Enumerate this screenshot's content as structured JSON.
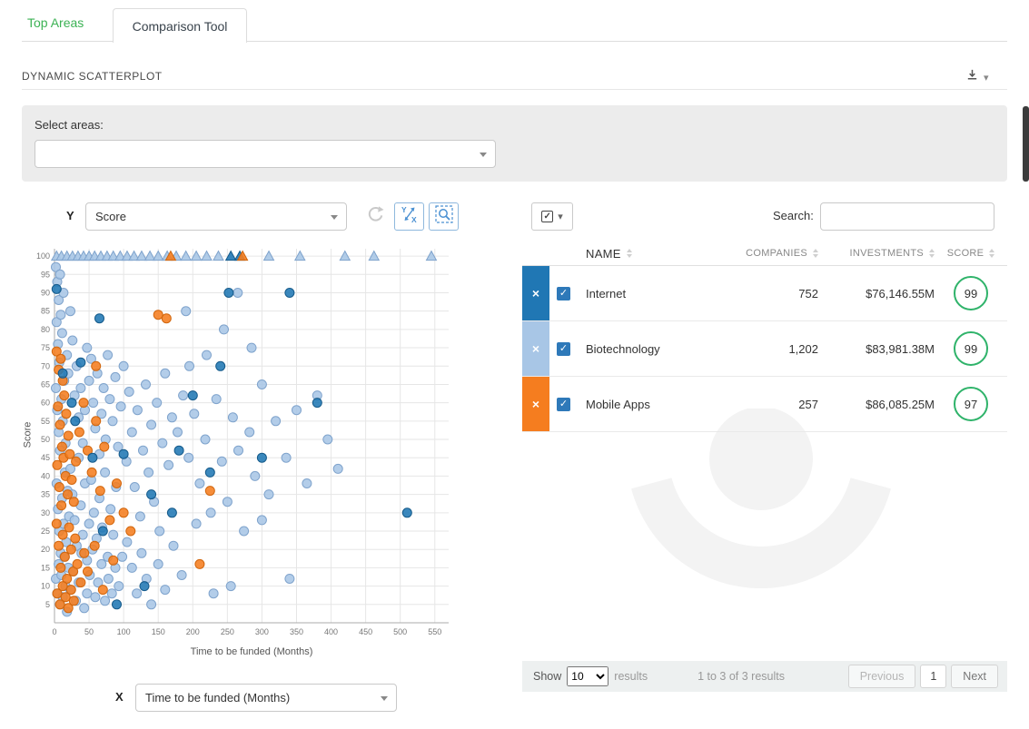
{
  "tabs": {
    "top_areas": "Top Areas",
    "comparison_tool": "Comparison Tool"
  },
  "section": {
    "title": "DYNAMIC SCATTERPLOT"
  },
  "area_filter": {
    "label": "Select areas:",
    "value": ""
  },
  "axis_controls": {
    "y_label": "Y",
    "y_value": "Score",
    "x_label": "X",
    "x_value": "Time to be funded (Months)"
  },
  "search": {
    "label": "Search:",
    "value": ""
  },
  "icons": {
    "check": "✓",
    "close_x": "×",
    "caret_down": "▾"
  },
  "colors": {
    "tab_green": "#3cb254",
    "accent_blue": "#4a90d2",
    "score_ring_green": "#2fb36a",
    "checkbox_blue": "#2e79b9",
    "series_internet": "#2077b4",
    "series_biotechnology": "#a8c6e6",
    "series_mobile_apps": "#f57d1f"
  },
  "table": {
    "headers": [
      "NAME",
      "COMPANIES",
      "INVESTMENTS",
      "SCORE"
    ],
    "rows": [
      {
        "name": "Internet",
        "companies": "752",
        "investments": "$76,146.55M",
        "score": "99",
        "badge_color": "#2077b4"
      },
      {
        "name": "Biotechnology",
        "companies": "1,202",
        "investments": "$83,981.38M",
        "score": "99",
        "badge_color": "#a8c6e6"
      },
      {
        "name": "Mobile Apps",
        "companies": "257",
        "investments": "$86,085.25M",
        "score": "97",
        "badge_color": "#f57d1f"
      }
    ]
  },
  "footer": {
    "show_label": "Show",
    "show_value": "10",
    "results_label": "results",
    "info": "1 to 3 of 3 results",
    "prev": "Previous",
    "page": "1",
    "next": "Next"
  },
  "chart_data": {
    "type": "scatter",
    "title": "",
    "xlabel": "Time to be funded (Months)",
    "ylabel": "Score",
    "xlim": [
      0,
      570
    ],
    "ylim": [
      0,
      102
    ],
    "x_ticks": [
      0,
      50,
      100,
      150,
      200,
      250,
      300,
      350,
      400,
      450,
      500,
      550
    ],
    "y_ticks": [
      5,
      10,
      15,
      20,
      25,
      30,
      35,
      40,
      45,
      50,
      55,
      60,
      65,
      70,
      75,
      80,
      85,
      90,
      95,
      100
    ],
    "grid": true,
    "legend": "none",
    "series": [
      {
        "name": "Biotechnology",
        "color": "#a8c6e6",
        "stroke": "#7fa3cc",
        "points": [
          [
            2,
            97
          ],
          [
            4,
            93
          ],
          [
            6,
            88
          ],
          [
            8,
            95
          ],
          [
            3,
            82
          ],
          [
            5,
            76
          ],
          [
            7,
            71
          ],
          [
            9,
            84
          ],
          [
            11,
            79
          ],
          [
            13,
            90
          ],
          [
            2,
            64
          ],
          [
            4,
            58
          ],
          [
            6,
            52
          ],
          [
            8,
            47
          ],
          [
            10,
            61
          ],
          [
            12,
            55
          ],
          [
            14,
            66
          ],
          [
            16,
            49
          ],
          [
            18,
            73
          ],
          [
            20,
            68
          ],
          [
            3,
            38
          ],
          [
            5,
            31
          ],
          [
            7,
            25
          ],
          [
            9,
            19
          ],
          [
            11,
            34
          ],
          [
            13,
            27
          ],
          [
            15,
            41
          ],
          [
            17,
            22
          ],
          [
            19,
            36
          ],
          [
            21,
            29
          ],
          [
            2,
            12
          ],
          [
            4,
            8
          ],
          [
            6,
            16
          ],
          [
            8,
            5
          ],
          [
            10,
            13
          ],
          [
            12,
            7
          ],
          [
            14,
            18
          ],
          [
            16,
            10
          ],
          [
            18,
            3
          ],
          [
            20,
            15
          ],
          [
            23,
            85
          ],
          [
            26,
            77
          ],
          [
            29,
            62
          ],
          [
            32,
            70
          ],
          [
            35,
            56
          ],
          [
            38,
            64
          ],
          [
            41,
            49
          ],
          [
            44,
            58
          ],
          [
            47,
            75
          ],
          [
            50,
            66
          ],
          [
            23,
            42
          ],
          [
            26,
            35
          ],
          [
            29,
            28
          ],
          [
            32,
            21
          ],
          [
            35,
            45
          ],
          [
            38,
            32
          ],
          [
            41,
            24
          ],
          [
            44,
            38
          ],
          [
            47,
            17
          ],
          [
            50,
            27
          ],
          [
            23,
            9
          ],
          [
            27,
            14
          ],
          [
            31,
            6
          ],
          [
            35,
            11
          ],
          [
            39,
            19
          ],
          [
            43,
            4
          ],
          [
            47,
            8
          ],
          [
            51,
            13
          ],
          [
            55,
            20
          ],
          [
            59,
            7
          ],
          [
            53,
            72
          ],
          [
            56,
            60
          ],
          [
            59,
            53
          ],
          [
            62,
            68
          ],
          [
            65,
            46
          ],
          [
            68,
            57
          ],
          [
            71,
            64
          ],
          [
            74,
            50
          ],
          [
            77,
            73
          ],
          [
            80,
            61
          ],
          [
            53,
            39
          ],
          [
            57,
            30
          ],
          [
            61,
            23
          ],
          [
            65,
            34
          ],
          [
            69,
            26
          ],
          [
            73,
            41
          ],
          [
            77,
            18
          ],
          [
            81,
            31
          ],
          [
            85,
            24
          ],
          [
            89,
            37
          ],
          [
            63,
            11
          ],
          [
            68,
            16
          ],
          [
            73,
            6
          ],
          [
            78,
            12
          ],
          [
            83,
            8
          ],
          [
            88,
            15
          ],
          [
            93,
            10
          ],
          [
            98,
            18
          ],
          [
            84,
            55
          ],
          [
            88,
            67
          ],
          [
            92,
            48
          ],
          [
            96,
            59
          ],
          [
            100,
            70
          ],
          [
            104,
            44
          ],
          [
            108,
            63
          ],
          [
            112,
            52
          ],
          [
            116,
            37
          ],
          [
            120,
            58
          ],
          [
            124,
            29
          ],
          [
            128,
            47
          ],
          [
            132,
            65
          ],
          [
            136,
            41
          ],
          [
            140,
            54
          ],
          [
            144,
            33
          ],
          [
            148,
            60
          ],
          [
            152,
            25
          ],
          [
            156,
            49
          ],
          [
            160,
            68
          ],
          [
            165,
            43
          ],
          [
            170,
            56
          ],
          [
            105,
            22
          ],
          [
            112,
            15
          ],
          [
            119,
            8
          ],
          [
            126,
            19
          ],
          [
            133,
            12
          ],
          [
            140,
            5
          ],
          [
            150,
            16
          ],
          [
            160,
            9
          ],
          [
            172,
            21
          ],
          [
            184,
            13
          ],
          [
            178,
            52
          ],
          [
            186,
            62
          ],
          [
            194,
            45
          ],
          [
            202,
            57
          ],
          [
            210,
            38
          ],
          [
            218,
            50
          ],
          [
            226,
            30
          ],
          [
            234,
            61
          ],
          [
            242,
            44
          ],
          [
            250,
            33
          ],
          [
            258,
            56
          ],
          [
            266,
            47
          ],
          [
            274,
            25
          ],
          [
            282,
            52
          ],
          [
            290,
            40
          ],
          [
            300,
            65
          ],
          [
            310,
            35
          ],
          [
            320,
            55
          ],
          [
            335,
            45
          ],
          [
            350,
            58
          ],
          [
            365,
            38
          ],
          [
            380,
            62
          ],
          [
            395,
            50
          ],
          [
            410,
            42
          ],
          [
            255,
            10
          ],
          [
            230,
            8
          ],
          [
            205,
            27
          ],
          [
            195,
            70
          ],
          [
            285,
            75
          ],
          [
            340,
            12
          ],
          [
            300,
            28
          ],
          [
            265,
            90
          ],
          [
            245,
            80
          ],
          [
            220,
            73
          ],
          [
            190,
            85
          ]
        ]
      },
      {
        "name": "Mobile Apps",
        "color": "#f57d1f",
        "stroke": "#d1660d",
        "points": [
          [
            3,
            74
          ],
          [
            6,
            69
          ],
          [
            9,
            72
          ],
          [
            12,
            66
          ],
          [
            5,
            59
          ],
          [
            8,
            54
          ],
          [
            11,
            48
          ],
          [
            14,
            62
          ],
          [
            17,
            57
          ],
          [
            20,
            51
          ],
          [
            4,
            43
          ],
          [
            7,
            37
          ],
          [
            10,
            32
          ],
          [
            13,
            45
          ],
          [
            16,
            40
          ],
          [
            19,
            35
          ],
          [
            22,
            46
          ],
          [
            25,
            39
          ],
          [
            28,
            33
          ],
          [
            31,
            44
          ],
          [
            3,
            27
          ],
          [
            6,
            21
          ],
          [
            9,
            15
          ],
          [
            12,
            24
          ],
          [
            15,
            18
          ],
          [
            18,
            12
          ],
          [
            21,
            26
          ],
          [
            24,
            20
          ],
          [
            27,
            14
          ],
          [
            30,
            23
          ],
          [
            4,
            8
          ],
          [
            8,
            5
          ],
          [
            12,
            10
          ],
          [
            16,
            7
          ],
          [
            20,
            4
          ],
          [
            24,
            9
          ],
          [
            28,
            6
          ],
          [
            33,
            16
          ],
          [
            38,
            11
          ],
          [
            43,
            19
          ],
          [
            36,
            52
          ],
          [
            42,
            60
          ],
          [
            48,
            47
          ],
          [
            54,
            41
          ],
          [
            60,
            55
          ],
          [
            66,
            36
          ],
          [
            72,
            48
          ],
          [
            80,
            28
          ],
          [
            90,
            38
          ],
          [
            100,
            30
          ],
          [
            48,
            14
          ],
          [
            58,
            21
          ],
          [
            70,
            9
          ],
          [
            85,
            17
          ],
          [
            110,
            25
          ],
          [
            150,
            84
          ],
          [
            162,
            83
          ],
          [
            210,
            16
          ],
          [
            225,
            36
          ],
          [
            60,
            70
          ]
        ]
      },
      {
        "name": "Internet",
        "color": "#2077b4",
        "stroke": "#155a8a",
        "points": [
          [
            3,
            91
          ],
          [
            12,
            68
          ],
          [
            25,
            60
          ],
          [
            38,
            71
          ],
          [
            55,
            45
          ],
          [
            65,
            83
          ],
          [
            70,
            25
          ],
          [
            90,
            5
          ],
          [
            100,
            46
          ],
          [
            130,
            10
          ],
          [
            140,
            35
          ],
          [
            170,
            30
          ],
          [
            200,
            62
          ],
          [
            240,
            70
          ],
          [
            252,
            90
          ],
          [
            300,
            45
          ],
          [
            340,
            90
          ],
          [
            380,
            60
          ],
          [
            510,
            30
          ],
          [
            30,
            55
          ],
          [
            180,
            47
          ],
          [
            225,
            41
          ]
        ]
      }
    ],
    "clipped_top_markers": [
      {
        "series": "Biotechnology",
        "color": "#a8c6e6",
        "stroke": "#7fa3cc",
        "x": [
          3,
          10,
          18,
          26,
          34,
          42,
          50,
          58,
          67,
          76,
          85,
          95,
          105,
          115,
          126,
          138,
          150,
          163,
          176,
          190,
          205,
          220,
          237,
          310,
          355,
          420,
          462,
          545
        ]
      },
      {
        "series": "Internet",
        "color": "#2077b4",
        "stroke": "#155a8a",
        "x": [
          255,
          268
        ]
      },
      {
        "series": "Mobile Apps",
        "color": "#f57d1f",
        "stroke": "#d1660d",
        "x": [
          168,
          272
        ]
      }
    ]
  }
}
